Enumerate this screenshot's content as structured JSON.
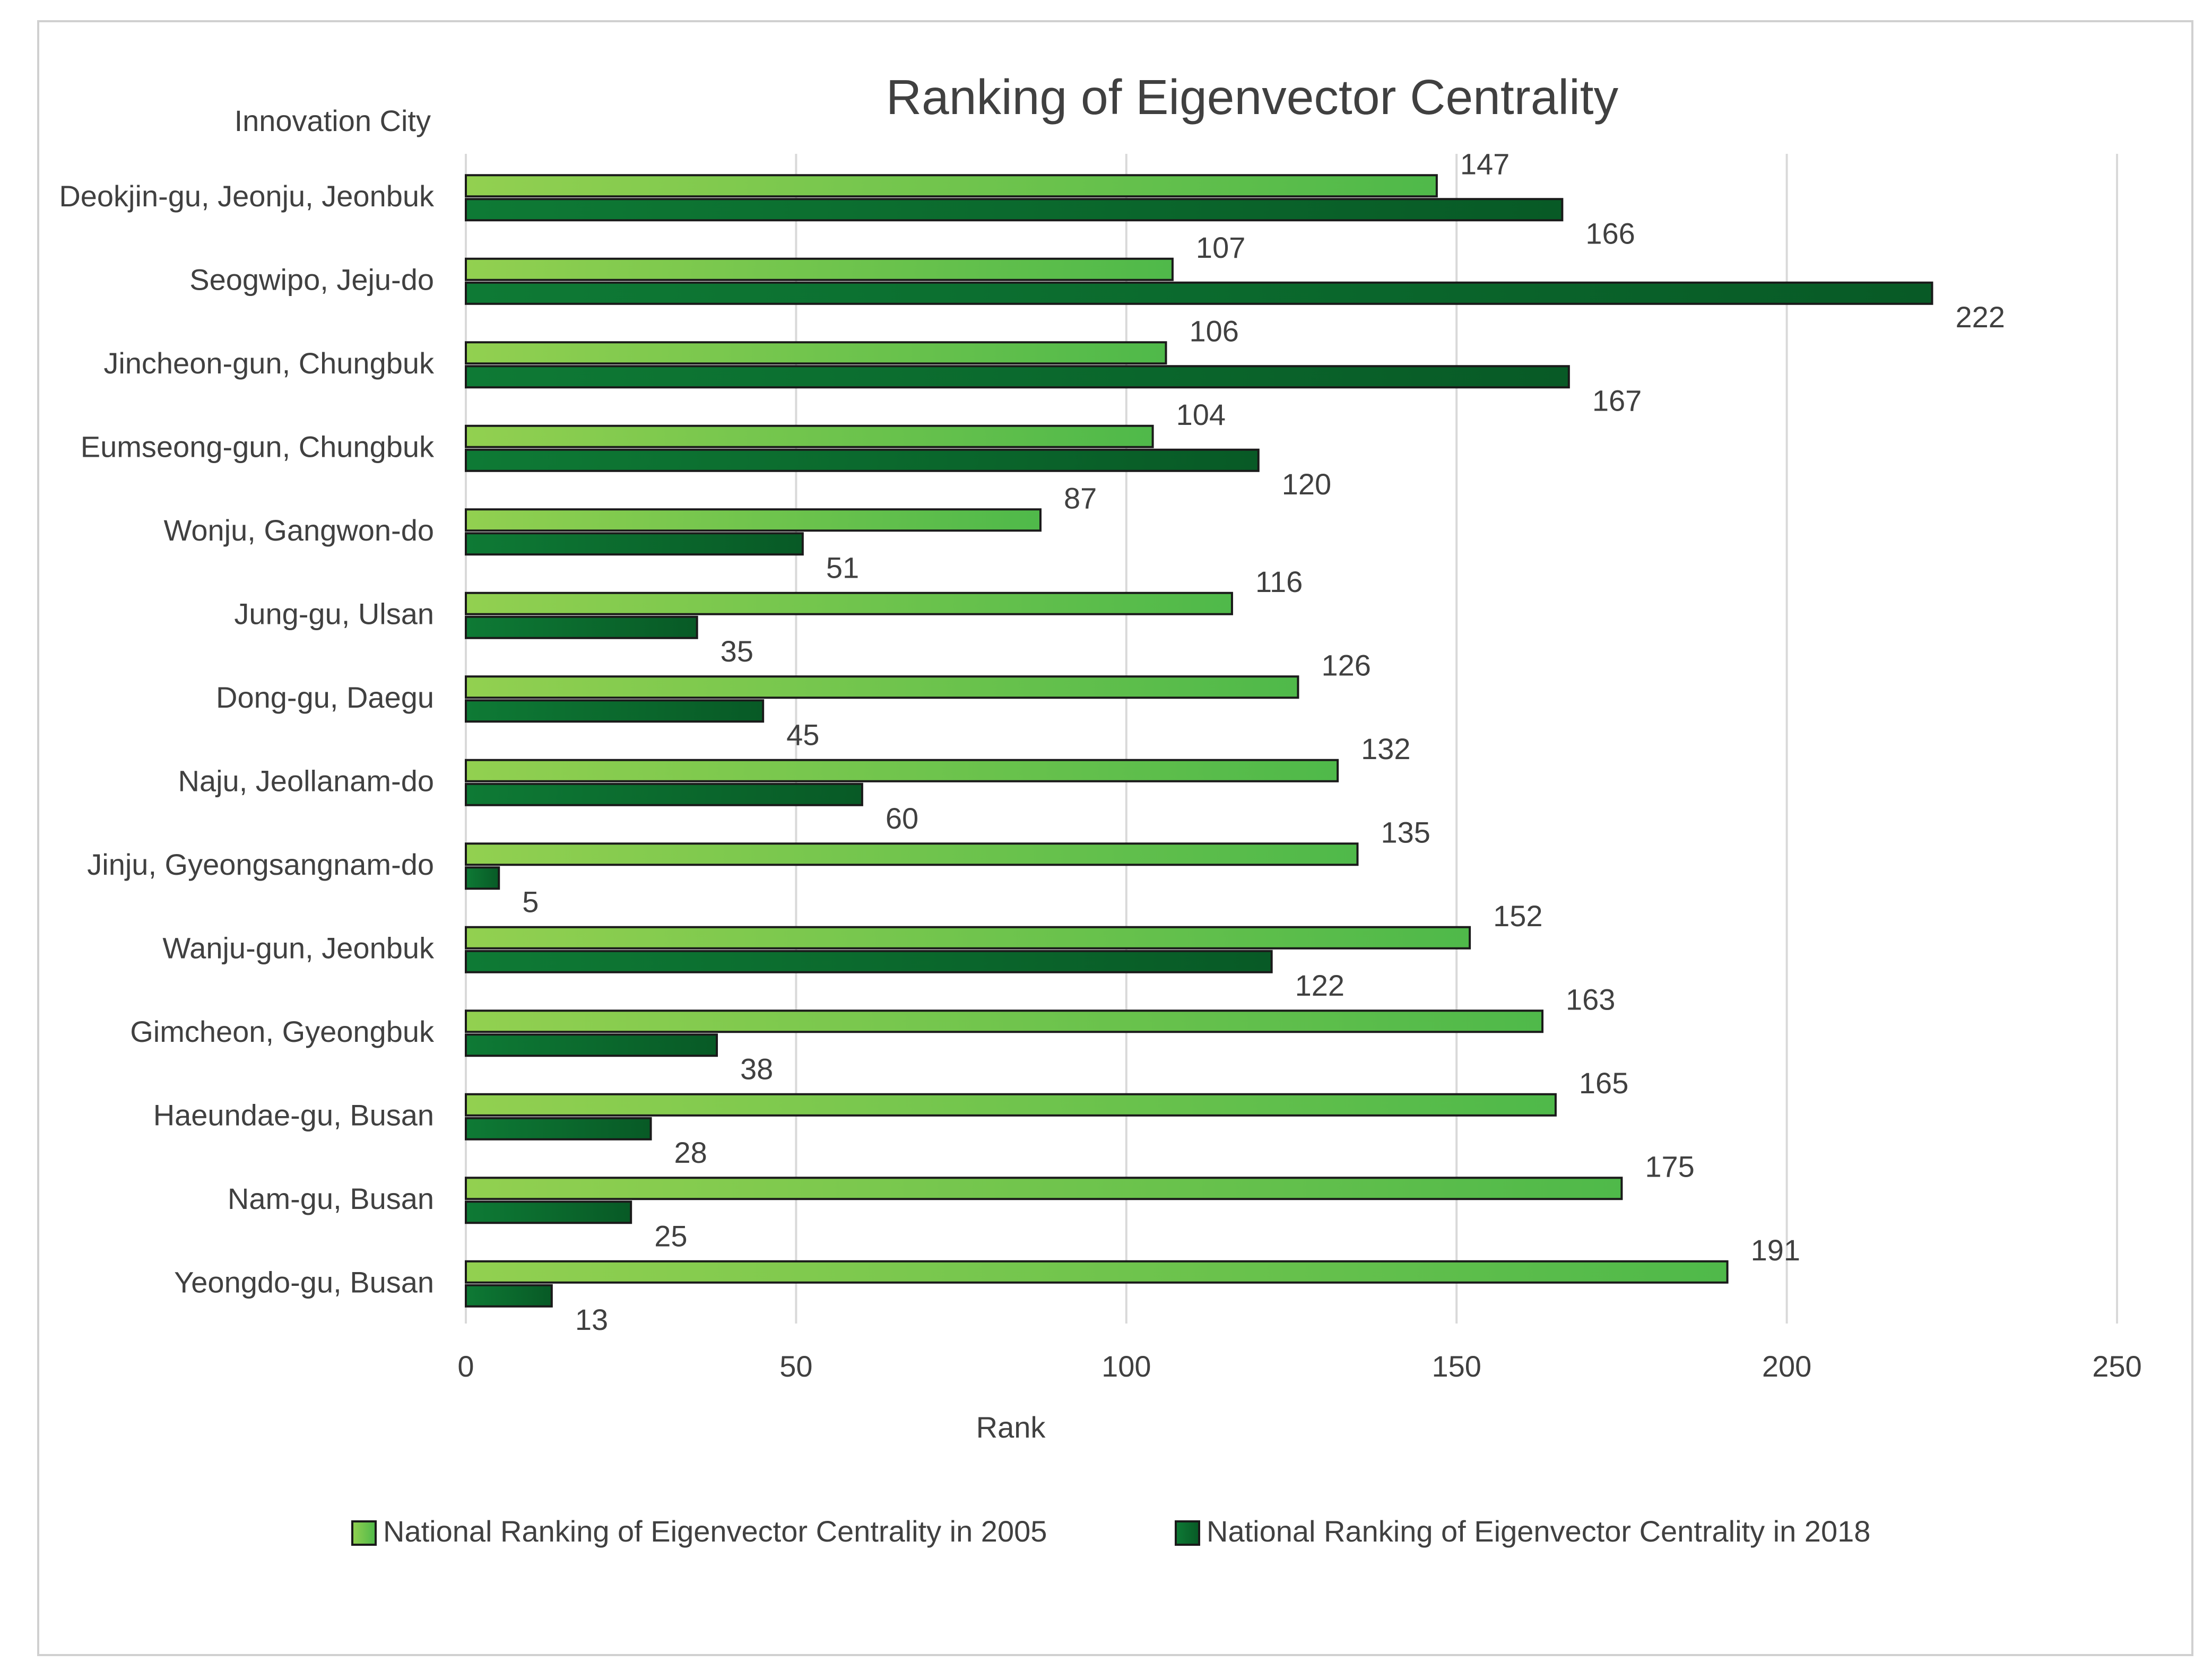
{
  "chart_data": {
    "type": "bar",
    "orientation": "horizontal",
    "title": "Ranking of Eigenvector Centrality",
    "ylabel": "Innovation City",
    "xlabel": "Rank",
    "xlim": [
      0,
      250
    ],
    "xticks": [
      0,
      50,
      100,
      150,
      200,
      250
    ],
    "grid": true,
    "legend_position": "bottom",
    "categories": [
      "Deokjin-gu, Jeonju, Jeonbuk",
      "Seogwipo, Jeju-do",
      "Jincheon-gun, Chungbuk",
      "Eumseong-gun, Chungbuk",
      "Wonju, Gangwon-do",
      "Jung-gu, Ulsan",
      "Dong-gu, Daegu",
      "Naju, Jeollanam-do",
      "Jinju, Gyeongsangnam-do",
      "Wanju-gun, Jeonbuk",
      "Gimcheon, Gyeongbuk",
      "Haeundae-gu, Busan",
      "Nam-gu, Busan",
      "Yeongdo-gu, Busan"
    ],
    "series": [
      {
        "name": "National Ranking of Eigenvector Centrality in 2005",
        "color": "#6cc24a",
        "values": [
          147,
          107,
          106,
          104,
          87,
          116,
          126,
          132,
          135,
          152,
          163,
          165,
          175,
          191
        ]
      },
      {
        "name": "National Ranking of Eigenvector Centrality in 2018",
        "color": "#0b6b2e",
        "values": [
          166,
          222,
          167,
          120,
          51,
          35,
          45,
          60,
          5,
          122,
          38,
          28,
          25,
          13
        ]
      }
    ]
  }
}
